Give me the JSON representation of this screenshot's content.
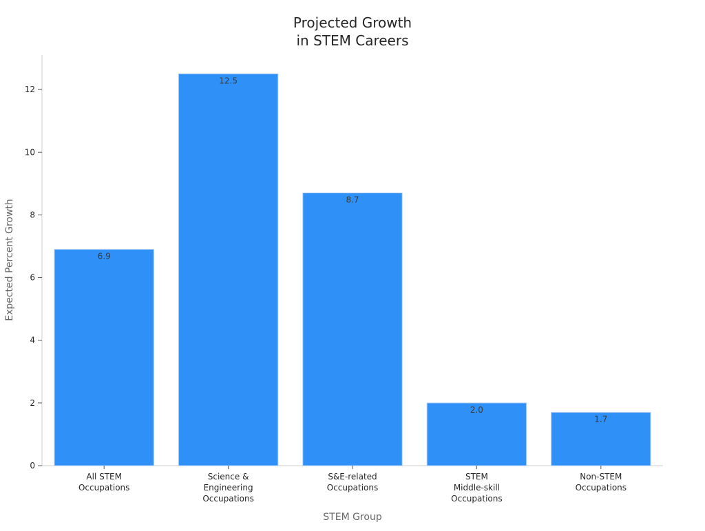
{
  "chart_data": {
    "type": "bar",
    "title": [
      "Projected Growth",
      "in STEM Careers"
    ],
    "xlabel": "STEM Group",
    "ylabel": "Expected Percent Growth",
    "categories": [
      [
        "All STEM",
        "Occupations"
      ],
      [
        "Science &",
        "Engineering",
        "Occupations"
      ],
      [
        "S&E-related",
        "Occupations"
      ],
      [
        "STEM",
        "Middle-skill",
        "Occupations"
      ],
      [
        "Non-STEM",
        "Occupations"
      ]
    ],
    "values": [
      6.9,
      12.5,
      8.7,
      2.0,
      1.7
    ],
    "value_labels": [
      "6.9",
      "12.5",
      "8.7",
      "2.0",
      "1.7"
    ],
    "ylim": [
      0,
      13.1
    ],
    "yticks": [
      0,
      2,
      4,
      6,
      8,
      10,
      12
    ],
    "bar_color": "#2f90f7",
    "grid": false,
    "legend": "none"
  }
}
